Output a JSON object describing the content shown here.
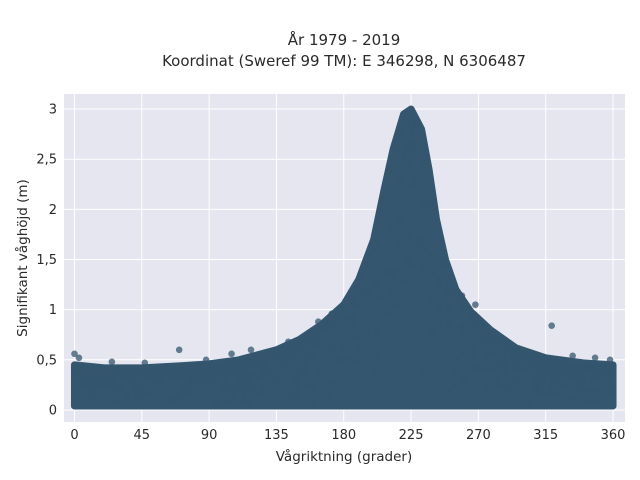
{
  "chart_data": {
    "type": "scatter",
    "title_lines": [
      "År 1979 - 2019",
      "Koordinat (Sweref 99 TM): E 346298, N 6306487"
    ],
    "xlabel": "Vågriktning (grader)",
    "ylabel": "Signifikant våghöjd (m)",
    "xlim": [
      -7,
      368
    ],
    "ylim": [
      -0.12,
      3.15
    ],
    "x_ticks": [
      {
        "value": 0,
        "label": "0"
      },
      {
        "value": 45,
        "label": "45"
      },
      {
        "value": 90,
        "label": "90"
      },
      {
        "value": 135,
        "label": "135"
      },
      {
        "value": 180,
        "label": "180"
      },
      {
        "value": 225,
        "label": "225"
      },
      {
        "value": 270,
        "label": "270"
      },
      {
        "value": 315,
        "label": "315"
      },
      {
        "value": 360,
        "label": "360"
      }
    ],
    "y_ticks": [
      {
        "value": 0,
        "label": "0"
      },
      {
        "value": 0.5,
        "label": "0,5"
      },
      {
        "value": 1,
        "label": "1"
      },
      {
        "value": 1.5,
        "label": "1,5"
      },
      {
        "value": 2,
        "label": "2"
      },
      {
        "value": 2.5,
        "label": "2,5"
      },
      {
        "value": 3,
        "label": "3"
      }
    ],
    "grid": true,
    "marker_color": "#34566e",
    "plot_bg": "#e5e6ef",
    "envelope": [
      {
        "x": 0,
        "y": 0.45
      },
      {
        "x": 20,
        "y": 0.42
      },
      {
        "x": 45,
        "y": 0.42
      },
      {
        "x": 70,
        "y": 0.44
      },
      {
        "x": 90,
        "y": 0.46
      },
      {
        "x": 110,
        "y": 0.5
      },
      {
        "x": 135,
        "y": 0.6
      },
      {
        "x": 150,
        "y": 0.7
      },
      {
        "x": 165,
        "y": 0.85
      },
      {
        "x": 180,
        "y": 1.05
      },
      {
        "x": 190,
        "y": 1.3
      },
      {
        "x": 200,
        "y": 1.7
      },
      {
        "x": 207,
        "y": 2.2
      },
      {
        "x": 213,
        "y": 2.6
      },
      {
        "x": 220,
        "y": 2.95
      },
      {
        "x": 225,
        "y": 3.0
      },
      {
        "x": 232,
        "y": 2.8
      },
      {
        "x": 237,
        "y": 2.4
      },
      {
        "x": 242,
        "y": 1.9
      },
      {
        "x": 248,
        "y": 1.5
      },
      {
        "x": 255,
        "y": 1.2
      },
      {
        "x": 265,
        "y": 0.98
      },
      {
        "x": 278,
        "y": 0.8
      },
      {
        "x": 295,
        "y": 0.62
      },
      {
        "x": 315,
        "y": 0.52
      },
      {
        "x": 340,
        "y": 0.47
      },
      {
        "x": 360,
        "y": 0.45
      }
    ],
    "floor": [
      {
        "x": 0,
        "y": 0.04
      },
      {
        "x": 360,
        "y": 0.04
      }
    ],
    "outliers": [
      {
        "x": 319,
        "y": 0.84
      },
      {
        "x": 0,
        "y": 0.56
      },
      {
        "x": 3,
        "y": 0.52
      },
      {
        "x": 25,
        "y": 0.48
      },
      {
        "x": 47,
        "y": 0.47
      },
      {
        "x": 70,
        "y": 0.6
      },
      {
        "x": 88,
        "y": 0.5
      },
      {
        "x": 105,
        "y": 0.56
      },
      {
        "x": 118,
        "y": 0.6
      },
      {
        "x": 143,
        "y": 0.68
      },
      {
        "x": 163,
        "y": 0.88
      },
      {
        "x": 172,
        "y": 0.96
      },
      {
        "x": 280,
        "y": 0.73
      },
      {
        "x": 288,
        "y": 0.65
      },
      {
        "x": 268,
        "y": 1.05
      },
      {
        "x": 259,
        "y": 1.14
      },
      {
        "x": 253,
        "y": 1.2
      },
      {
        "x": 333,
        "y": 0.54
      },
      {
        "x": 348,
        "y": 0.52
      },
      {
        "x": 358,
        "y": 0.5
      },
      {
        "x": 303,
        "y": 0.58
      },
      {
        "x": 297,
        "y": 0.56
      }
    ]
  }
}
